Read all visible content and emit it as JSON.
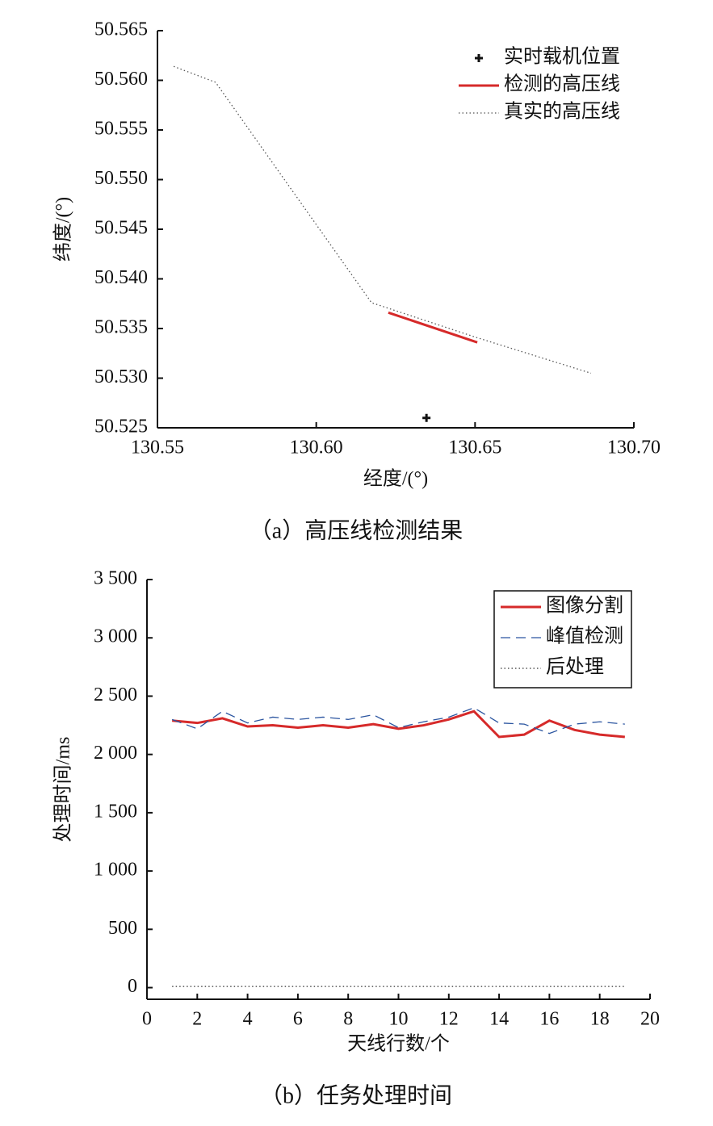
{
  "chart_data": [
    {
      "type": "line",
      "caption": "（a）高压线检测结果",
      "xlabel": "经度/(°)",
      "ylabel": "纬度/(°)",
      "xlim": [
        130.55,
        130.7
      ],
      "xticks": [
        130.55,
        {
          "value": 130.6,
          "label": "130.60"
        },
        130.65,
        {
          "value": 130.7,
          "label": "130.70"
        }
      ],
      "ylim": [
        50.525,
        50.565
      ],
      "yticks": [
        50.565,
        {
          "value": 50.56,
          "label": "50.560"
        },
        50.555,
        {
          "value": 50.55,
          "label": "50.550"
        },
        50.545,
        {
          "value": 50.54,
          "label": "50.540"
        },
        50.535,
        {
          "value": 50.53,
          "label": "50.530"
        },
        50.525
      ],
      "legend": "upper right",
      "legend_border": false,
      "series": [
        {
          "name": "实时载机位置",
          "color": "#111111",
          "style": "plus",
          "x": [
            130.6347
          ],
          "values": [
            50.526
          ]
        },
        {
          "name": "检测的高压线",
          "color": "#d62a2a",
          "style": "solid",
          "x": [
            130.6227,
            130.6507
          ],
          "values": [
            50.5366,
            50.5336
          ]
        },
        {
          "name": "真实的高压线",
          "color": "#555555",
          "style": "dotted",
          "x": [
            130.5551,
            130.5683,
            130.6174,
            130.6504,
            130.6865
          ],
          "values": [
            50.5614,
            50.5598,
            50.5376,
            50.5341,
            50.5305
          ]
        }
      ]
    },
    {
      "type": "line",
      "caption": "（b）任务处理时间",
      "xlabel": "天线行数/个",
      "ylabel": "处理时间/ms",
      "xlim": [
        0,
        20
      ],
      "xticks": [
        0,
        2,
        4,
        6,
        8,
        10,
        12,
        14,
        16,
        18,
        20
      ],
      "ylim": [
        -100,
        3500
      ],
      "yticks": [
        {
          "value": 3500,
          "label": "3 500"
        },
        {
          "value": 3000,
          "label": "3 000"
        },
        {
          "value": 2500,
          "label": "2 500"
        },
        {
          "value": 2000,
          "label": "2 000"
        },
        {
          "value": 1500,
          "label": "1 500"
        },
        {
          "value": 1000,
          "label": "1 000"
        },
        500,
        0
      ],
      "legend": "upper right",
      "legend_border": true,
      "x": [
        1,
        2,
        3,
        4,
        5,
        6,
        7,
        8,
        9,
        10,
        11,
        12,
        13,
        14,
        15,
        16,
        17,
        18,
        19
      ],
      "series": [
        {
          "name": "图像分割",
          "color": "#d62a2a",
          "style": "solid",
          "values": [
            2290,
            2270,
            2310,
            2240,
            2250,
            2230,
            2250,
            2230,
            2260,
            2220,
            2250,
            2300,
            2370,
            2150,
            2170,
            2290,
            2210,
            2170,
            2150
          ]
        },
        {
          "name": "峰值检测",
          "color": "#2b55a0",
          "style": "dashed",
          "values": [
            2300,
            2220,
            2370,
            2270,
            2320,
            2300,
            2320,
            2300,
            2340,
            2230,
            2280,
            2320,
            2400,
            2270,
            2260,
            2180,
            2260,
            2280,
            2260
          ]
        },
        {
          "name": "后处理",
          "color": "#333333",
          "style": "dotted",
          "values": [
            10,
            10,
            10,
            10,
            10,
            10,
            10,
            10,
            10,
            10,
            10,
            10,
            10,
            10,
            10,
            10,
            10,
            10,
            10
          ]
        }
      ]
    }
  ]
}
